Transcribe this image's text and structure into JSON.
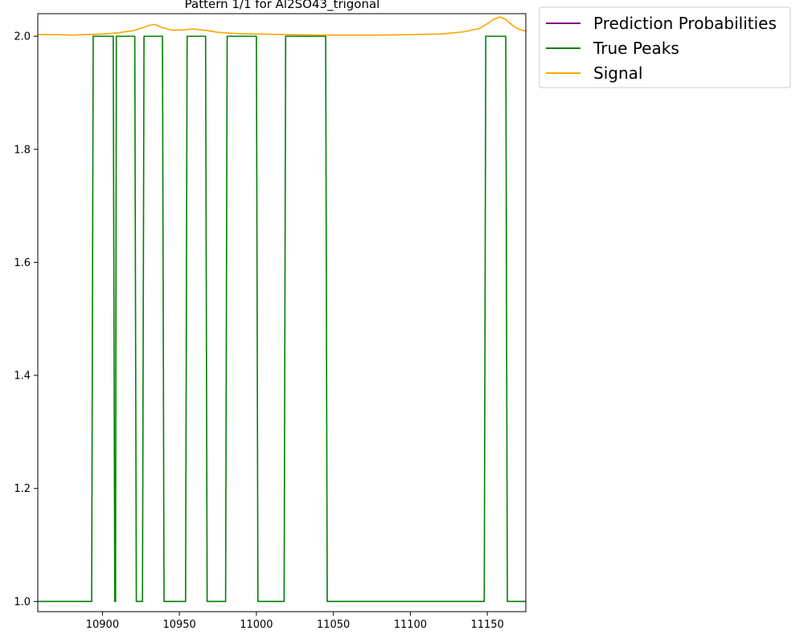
{
  "chart_data": {
    "type": "line",
    "title": "Pattern 1/1 for Al2SO43_trigonal",
    "xlabel": "",
    "ylabel": "",
    "xlim": [
      10858,
      11175
    ],
    "ylim": [
      0.982,
      2.04
    ],
    "xticks": [
      10900,
      10950,
      11000,
      11050,
      11100,
      11150
    ],
    "yticks": [
      1.0,
      1.2,
      1.4,
      1.6,
      1.8,
      2.0
    ],
    "xtick_labels": [
      "10900",
      "10950",
      "11000",
      "11050",
      "11100",
      "11150"
    ],
    "ytick_labels": [
      "1.0",
      "1.2",
      "1.4",
      "1.6",
      "1.8",
      "2.0"
    ],
    "grid": false,
    "legend_position": "outside top-right",
    "series": [
      {
        "name": "Prediction Probabilities",
        "color": "#800080",
        "x": [],
        "y": []
      },
      {
        "name": "True Peaks",
        "color": "#008000",
        "x": [
          10858,
          10893,
          10894,
          10907,
          10908,
          10908.5,
          10909,
          10921,
          10922,
          10926,
          10927,
          10939,
          10940,
          10954,
          10955,
          10967,
          10968,
          10980,
          10981,
          11000,
          11001,
          11018,
          11019,
          11045,
          11046,
          11148,
          11149,
          11162,
          11163,
          11175
        ],
        "y": [
          1.0,
          1.0,
          2.0,
          2.0,
          1.0,
          1.0,
          2.0,
          2.0,
          1.0,
          1.0,
          2.0,
          2.0,
          1.0,
          1.0,
          2.0,
          2.0,
          1.0,
          1.0,
          2.0,
          2.0,
          1.0,
          1.0,
          2.0,
          2.0,
          1.0,
          1.0,
          2.0,
          2.0,
          1.0,
          1.0
        ]
      },
      {
        "name": "Signal",
        "color": "#ffa500",
        "x": [
          10858,
          10870,
          10880,
          10890,
          10900,
          10910,
          10920,
          10925,
          10930,
          10934,
          10938,
          10945,
          10952,
          10958,
          10962,
          10968,
          10975,
          10985,
          11000,
          11020,
          11040,
          11060,
          11080,
          11100,
          11120,
          11135,
          11145,
          11150,
          11154,
          11158,
          11162,
          11166,
          11170,
          11175
        ],
        "y": [
          2.003,
          2.003,
          2.002,
          2.003,
          2.004,
          2.006,
          2.01,
          2.014,
          2.019,
          2.021,
          2.016,
          2.011,
          2.011,
          2.013,
          2.012,
          2.01,
          2.007,
          2.005,
          2.004,
          2.003,
          2.002,
          2.002,
          2.002,
          2.003,
          2.004,
          2.008,
          2.014,
          2.022,
          2.03,
          2.034,
          2.03,
          2.02,
          2.013,
          2.009
        ]
      }
    ]
  }
}
